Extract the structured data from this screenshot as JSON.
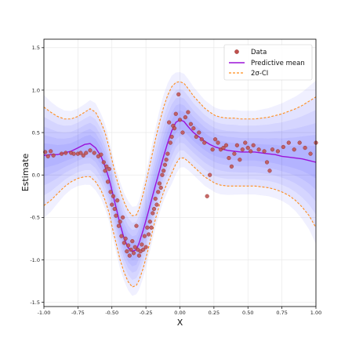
{
  "chart_data": {
    "type": "scatter",
    "xlabel": "X",
    "ylabel": "Estimate",
    "xlim": [
      -1.0,
      1.0
    ],
    "ylim": [
      -1.55,
      1.6
    ],
    "x_ticks": [
      "-1.00",
      "-0.75",
      "-0.50",
      "-0.25",
      "0.00",
      "0.25",
      "0.50",
      "0.75",
      "1.00"
    ],
    "y_ticks": [
      "-1.5",
      "-1.0",
      "-0.5",
      "0.0",
      "0.5",
      "1.0",
      "1.5"
    ],
    "grid": true,
    "legend_position": "top-right",
    "legend": {
      "data": "Data",
      "mean": "Predictive mean",
      "ci": "2σ-CI"
    },
    "colors": {
      "points": "#c0504d",
      "point_edge": "#8b2e2a",
      "mean": "#9b12d8",
      "ci": "#ff8c1a",
      "band": "#3a3aff"
    },
    "series": [
      {
        "name": "Data",
        "type": "scatter",
        "points": [
          [
            -0.99,
            0.27
          ],
          [
            -0.97,
            0.22
          ],
          [
            -0.95,
            0.28
          ],
          [
            -0.93,
            0.23
          ],
          [
            -0.87,
            0.25
          ],
          [
            -0.84,
            0.26
          ],
          [
            -0.8,
            0.26
          ],
          [
            -0.78,
            0.25
          ],
          [
            -0.75,
            0.25
          ],
          [
            -0.73,
            0.26
          ],
          [
            -0.71,
            0.23
          ],
          [
            -0.69,
            0.26
          ],
          [
            -0.66,
            0.29
          ],
          [
            -0.63,
            0.26
          ],
          [
            -0.6,
            0.22
          ],
          [
            -0.58,
            0.24
          ],
          [
            -0.56,
            0.15
          ],
          [
            -0.55,
            0.05
          ],
          [
            -0.54,
            0.1
          ],
          [
            -0.53,
            -0.08
          ],
          [
            -0.52,
            0.07
          ],
          [
            -0.51,
            -0.2
          ],
          [
            -0.5,
            -0.35
          ],
          [
            -0.49,
            -0.25
          ],
          [
            -0.48,
            -0.4
          ],
          [
            -0.47,
            -0.48
          ],
          [
            -0.46,
            -0.3
          ],
          [
            -0.45,
            -0.6
          ],
          [
            -0.44,
            -0.55
          ],
          [
            -0.43,
            -0.72
          ],
          [
            -0.42,
            -0.5
          ],
          [
            -0.41,
            -0.8
          ],
          [
            -0.4,
            -0.75
          ],
          [
            -0.39,
            -0.9
          ],
          [
            -0.38,
            -0.83
          ],
          [
            -0.37,
            -0.95
          ],
          [
            -0.36,
            -0.88
          ],
          [
            -0.35,
            -0.78
          ],
          [
            -0.34,
            -0.92
          ],
          [
            -0.33,
            -0.85
          ],
          [
            -0.32,
            -0.6
          ],
          [
            -0.31,
            -0.88
          ],
          [
            -0.3,
            -0.95
          ],
          [
            -0.29,
            -0.9
          ],
          [
            -0.28,
            -0.82
          ],
          [
            -0.27,
            -0.88
          ],
          [
            -0.26,
            -0.72
          ],
          [
            -0.25,
            -0.85
          ],
          [
            -0.24,
            -0.62
          ],
          [
            -0.23,
            -0.7
          ],
          [
            -0.22,
            -0.55
          ],
          [
            -0.21,
            -0.62
          ],
          [
            -0.2,
            -0.45
          ],
          [
            -0.19,
            -0.4
          ],
          [
            -0.18,
            -0.28
          ],
          [
            -0.17,
            -0.35
          ],
          [
            -0.16,
            -0.2
          ],
          [
            -0.15,
            -0.1
          ],
          [
            -0.14,
            -0.15
          ],
          [
            -0.13,
            0.0
          ],
          [
            -0.12,
            0.05
          ],
          [
            -0.11,
            0.12
          ],
          [
            -0.1,
            0.18
          ],
          [
            -0.09,
            0.25
          ],
          [
            -0.08,
            0.62
          ],
          [
            -0.07,
            0.38
          ],
          [
            -0.06,
            0.45
          ],
          [
            -0.05,
            0.58
          ],
          [
            -0.04,
            0.55
          ],
          [
            -0.03,
            0.72
          ],
          [
            -0.01,
            0.95
          ],
          [
            0.0,
            0.65
          ],
          [
            0.02,
            0.5
          ],
          [
            0.04,
            0.68
          ],
          [
            0.06,
            0.74
          ],
          [
            0.08,
            0.6
          ],
          [
            0.1,
            0.55
          ],
          [
            0.12,
            0.45
          ],
          [
            0.14,
            0.5
          ],
          [
            0.16,
            0.42
          ],
          [
            0.18,
            0.38
          ],
          [
            0.2,
            -0.25
          ],
          [
            0.22,
            0.0
          ],
          [
            0.24,
            0.3
          ],
          [
            0.26,
            0.42
          ],
          [
            0.28,
            0.38
          ],
          [
            0.3,
            0.3
          ],
          [
            0.32,
            0.32
          ],
          [
            0.34,
            0.35
          ],
          [
            0.36,
            0.2
          ],
          [
            0.38,
            0.1
          ],
          [
            0.4,
            0.25
          ],
          [
            0.42,
            0.35
          ],
          [
            0.44,
            0.18
          ],
          [
            0.46,
            0.3
          ],
          [
            0.48,
            0.38
          ],
          [
            0.5,
            0.32
          ],
          [
            0.52,
            0.28
          ],
          [
            0.54,
            0.35
          ],
          [
            0.58,
            0.3
          ],
          [
            0.62,
            0.28
          ],
          [
            0.64,
            0.15
          ],
          [
            0.66,
            0.05
          ],
          [
            0.68,
            0.3
          ],
          [
            0.72,
            0.28
          ],
          [
            0.76,
            0.33
          ],
          [
            0.8,
            0.38
          ],
          [
            0.84,
            0.3
          ],
          [
            0.88,
            0.38
          ],
          [
            0.92,
            0.32
          ],
          [
            0.96,
            0.25
          ],
          [
            1.0,
            0.38
          ]
        ]
      },
      {
        "name": "Predictive mean",
        "type": "line",
        "x": [
          -1.0,
          -0.95,
          -0.9,
          -0.85,
          -0.8,
          -0.75,
          -0.7,
          -0.66,
          -0.62,
          -0.58,
          -0.55,
          -0.52,
          -0.5,
          -0.47,
          -0.44,
          -0.41,
          -0.38,
          -0.35,
          -0.32,
          -0.3,
          -0.27,
          -0.24,
          -0.21,
          -0.18,
          -0.15,
          -0.12,
          -0.09,
          -0.06,
          -0.03,
          0.0,
          0.03,
          0.06,
          0.1,
          0.14,
          0.18,
          0.22,
          0.26,
          0.3,
          0.35,
          0.4,
          0.45,
          0.5,
          0.55,
          0.6,
          0.65,
          0.7,
          0.75,
          0.8,
          0.85,
          0.9,
          0.95,
          1.0
        ],
        "y": [
          0.23,
          0.24,
          0.24,
          0.26,
          0.28,
          0.32,
          0.36,
          0.37,
          0.32,
          0.22,
          0.1,
          -0.05,
          -0.18,
          -0.38,
          -0.58,
          -0.75,
          -0.86,
          -0.9,
          -0.88,
          -0.8,
          -0.65,
          -0.48,
          -0.3,
          -0.12,
          0.05,
          0.22,
          0.38,
          0.52,
          0.62,
          0.65,
          0.63,
          0.57,
          0.5,
          0.45,
          0.4,
          0.36,
          0.33,
          0.31,
          0.29,
          0.28,
          0.27,
          0.27,
          0.27,
          0.26,
          0.25,
          0.24,
          0.22,
          0.21,
          0.2,
          0.19,
          0.17,
          0.15
        ]
      },
      {
        "name": "2σ-CI upper",
        "type": "line",
        "x": [
          -1.0,
          -0.95,
          -0.9,
          -0.85,
          -0.8,
          -0.75,
          -0.7,
          -0.66,
          -0.62,
          -0.58,
          -0.55,
          -0.52,
          -0.5,
          -0.47,
          -0.44,
          -0.41,
          -0.38,
          -0.35,
          -0.32,
          -0.3,
          -0.27,
          -0.24,
          -0.21,
          -0.18,
          -0.15,
          -0.12,
          -0.09,
          -0.06,
          -0.03,
          0.0,
          0.03,
          0.06,
          0.1,
          0.14,
          0.18,
          0.22,
          0.26,
          0.3,
          0.35,
          0.4,
          0.45,
          0.5,
          0.55,
          0.6,
          0.65,
          0.7,
          0.75,
          0.8,
          0.85,
          0.9,
          0.95,
          1.0
        ],
        "y": [
          0.8,
          0.74,
          0.69,
          0.66,
          0.66,
          0.69,
          0.74,
          0.78,
          0.74,
          0.62,
          0.5,
          0.32,
          0.18,
          -0.02,
          -0.18,
          -0.32,
          -0.42,
          -0.48,
          -0.47,
          -0.4,
          -0.22,
          -0.02,
          0.2,
          0.42,
          0.62,
          0.8,
          0.94,
          1.04,
          1.09,
          1.1,
          1.08,
          1.02,
          0.93,
          0.86,
          0.79,
          0.74,
          0.7,
          0.68,
          0.67,
          0.67,
          0.66,
          0.66,
          0.66,
          0.67,
          0.68,
          0.7,
          0.72,
          0.75,
          0.78,
          0.82,
          0.87,
          0.92
        ]
      },
      {
        "name": "2σ-CI lower",
        "type": "line",
        "x": [
          -1.0,
          -0.95,
          -0.9,
          -0.85,
          -0.8,
          -0.75,
          -0.7,
          -0.66,
          -0.62,
          -0.58,
          -0.55,
          -0.52,
          -0.5,
          -0.47,
          -0.44,
          -0.41,
          -0.38,
          -0.35,
          -0.32,
          -0.3,
          -0.27,
          -0.24,
          -0.21,
          -0.18,
          -0.15,
          -0.12,
          -0.09,
          -0.06,
          -0.03,
          0.0,
          0.03,
          0.06,
          0.1,
          0.14,
          0.18,
          0.22,
          0.26,
          0.3,
          0.35,
          0.4,
          0.45,
          0.5,
          0.55,
          0.6,
          0.65,
          0.7,
          0.75,
          0.8,
          0.85,
          0.9,
          0.95,
          1.0
        ],
        "y": [
          -0.36,
          -0.3,
          -0.22,
          -0.14,
          -0.08,
          -0.04,
          -0.02,
          -0.02,
          -0.08,
          -0.18,
          -0.3,
          -0.45,
          -0.6,
          -0.8,
          -1.0,
          -1.15,
          -1.26,
          -1.32,
          -1.3,
          -1.24,
          -1.1,
          -0.92,
          -0.72,
          -0.52,
          -0.35,
          -0.2,
          -0.08,
          0.02,
          0.13,
          0.2,
          0.2,
          0.16,
          0.1,
          0.04,
          -0.02,
          -0.06,
          -0.1,
          -0.12,
          -0.13,
          -0.13,
          -0.13,
          -0.13,
          -0.13,
          -0.14,
          -0.15,
          -0.17,
          -0.2,
          -0.24,
          -0.3,
          -0.38,
          -0.48,
          -0.62
        ]
      }
    ]
  }
}
